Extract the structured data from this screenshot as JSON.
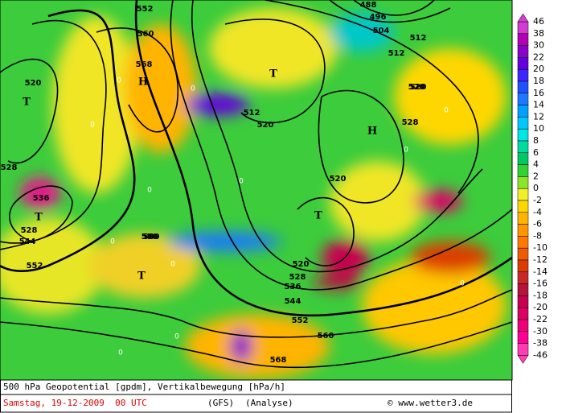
{
  "map": {
    "isohypse_labels": [
      "552",
      "560",
      "568",
      "520",
      "528",
      "536",
      "544",
      "552",
      "580",
      "512",
      "520",
      "512",
      "520",
      "488",
      "496",
      "504",
      "512",
      "520",
      "528",
      "520",
      "528",
      "536",
      "544",
      "552",
      "560",
      "568",
      "528",
      "580",
      "520"
    ],
    "pressure_labels": [
      "H",
      "T",
      "T",
      "T",
      "H",
      "T",
      "T"
    ],
    "zero_labels": [
      "0",
      "0",
      "0",
      "0",
      "0",
      "0",
      "0",
      "0",
      "0",
      "0",
      "0",
      "0"
    ]
  },
  "legend": {
    "labels": [
      46,
      38,
      30,
      22,
      20,
      18,
      16,
      14,
      12,
      10,
      8,
      6,
      4,
      2,
      0,
      -2,
      -4,
      -6,
      -8,
      -10,
      -12,
      -14,
      -16,
      -18,
      -20,
      -22,
      -30,
      -38,
      -46
    ],
    "colors": [
      "#d23cd2",
      "#b400b4",
      "#8c00c8",
      "#6400dc",
      "#3c28ff",
      "#1e50ff",
      "#1e78ff",
      "#00a0ff",
      "#00c8ff",
      "#00e6e6",
      "#00dca0",
      "#00c864",
      "#32d232",
      "#8ce628",
      "#f0f028",
      "#ffd700",
      "#ffb400",
      "#ff9600",
      "#ff7800",
      "#f05a00",
      "#dc3c00",
      "#c82828",
      "#b4143c",
      "#c80050",
      "#dc0064",
      "#f00078",
      "#ff0096",
      "#ff3cb4"
    ]
  },
  "footer": {
    "line1": "500 hPa Geopotential [gpdm], Vertikalbewegung [hPa/h]",
    "date": "Samstag, 19-12-2009  00 UTC",
    "model": "(GFS)",
    "run": "(Analyse)",
    "credit": "© www.wetter3.de"
  }
}
